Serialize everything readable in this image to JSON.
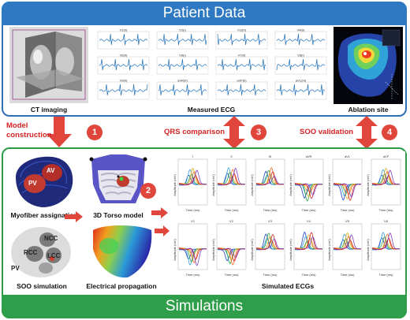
{
  "patient_data": {
    "title": "Patient Data"
  },
  "simulations": {
    "title": "Simulations"
  },
  "captions": {
    "ct": "CT imaging",
    "measured_ecg": "Measured ECG",
    "ablation": "Ablation site",
    "myofiber": "Myofiber assignation",
    "torso": "3D Torso model",
    "soo_sim": "SOO simulation",
    "propagation": "Electrical propagation",
    "simulated_ecgs": "Simulated ECGs"
  },
  "links": {
    "model_construction_line1": "Model",
    "model_construction_line2": "construction",
    "qrs": "QRS comparison",
    "soo_validation": "SOO validation"
  },
  "steps": [
    "1",
    "2",
    "3",
    "4"
  ],
  "anatomy": {
    "av": "AV",
    "pv": "PV",
    "ncc": "NCC",
    "rcc": "RCC",
    "lcc": "LCC",
    "pv2": "PV"
  },
  "measured_leads": [
    "V1(II)",
    "V2(I)",
    "V1(III)",
    "V4(II)",
    "V5(II)",
    "V6(I)",
    "V7(II)",
    "V8(I)",
    "V9(II)",
    "aVR(II)",
    "aVF(II)",
    "aVL(III)"
  ],
  "simulated_leads": [
    "I",
    "II",
    "III",
    "aVR",
    "aVL",
    "aVF",
    "V1",
    "V2",
    "V3",
    "V4",
    "V5",
    "V6"
  ],
  "axes": {
    "time": "Time (ms)",
    "amp": "Amplitude (mV)"
  },
  "colors": {
    "patient": "#2e79c2",
    "simulation": "#2f9e4a",
    "arrow": "#e0463b"
  }
}
